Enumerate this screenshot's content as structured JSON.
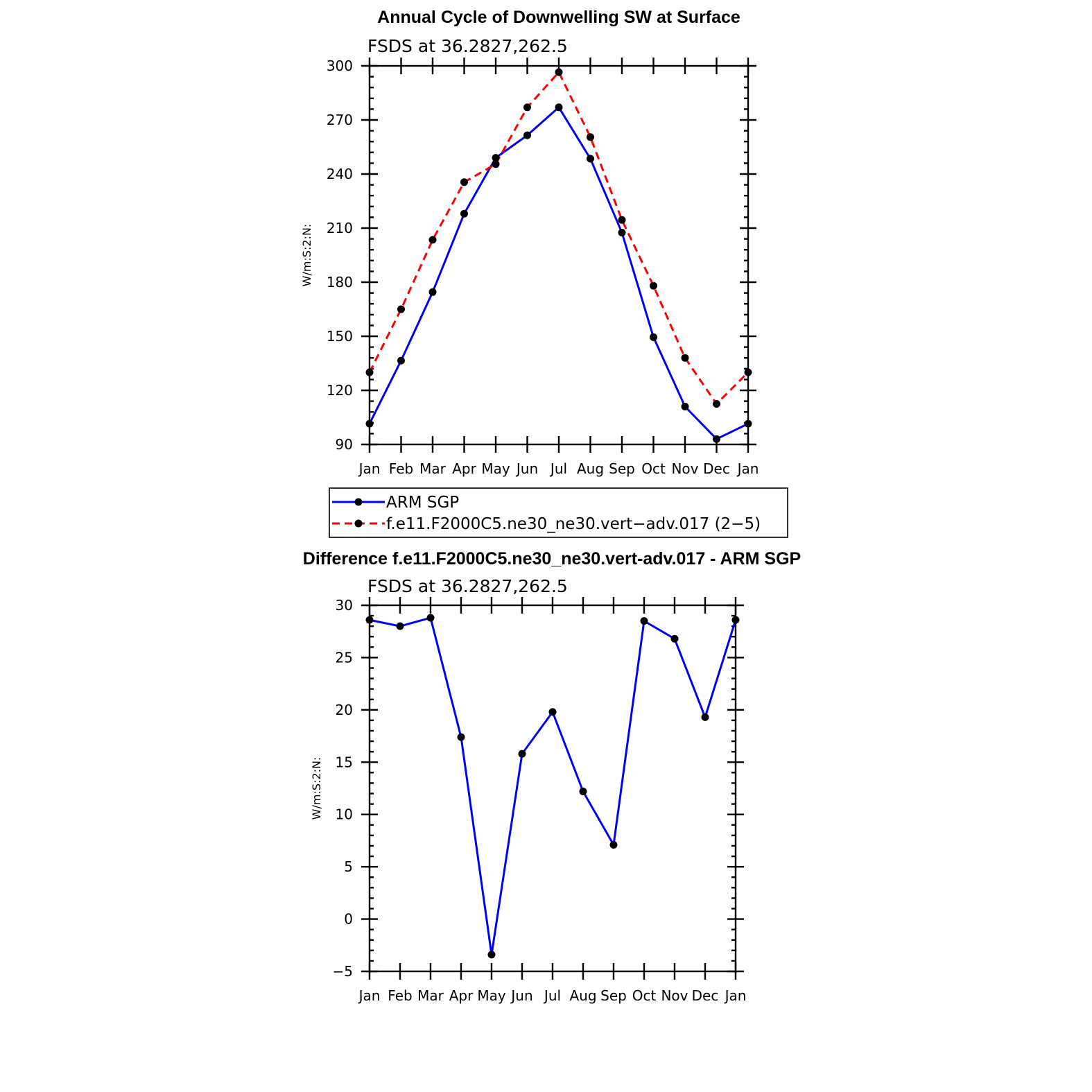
{
  "chart_data": [
    {
      "type": "line",
      "title": "Annual Cycle of Downwelling SW at Surface",
      "subtitle": "FSDS at 36.2827,262.5",
      "ylabel": "W/m:S:2:N:",
      "xlabel": "",
      "categories": [
        "Jan",
        "Feb",
        "Mar",
        "Apr",
        "May",
        "Jun",
        "Jul",
        "Aug",
        "Sep",
        "Oct",
        "Nov",
        "Dec",
        "Jan"
      ],
      "yticks": [
        90,
        120,
        150,
        180,
        210,
        240,
        270,
        300
      ],
      "ylim": [
        90,
        300
      ],
      "grid": false,
      "legend_position": "below",
      "series": [
        {
          "name": "ARM SGP",
          "color": "#0000ff",
          "dash": "solid",
          "values": [
            101.5,
            136.5,
            174.5,
            218,
            249,
            261.5,
            277,
            248.5,
            207.5,
            149.5,
            111,
            93,
            101.5
          ]
        },
        {
          "name": "f.e11.F2000C5.ne30_ne30.vert−adv.017 (2−5)",
          "color": "#ff0000",
          "dash": "dashed",
          "values": [
            130,
            165,
            203.5,
            235.5,
            245.5,
            277,
            296.5,
            260.5,
            214.5,
            178,
            138,
            112.5,
            130
          ]
        }
      ]
    },
    {
      "type": "line",
      "title": "Difference f.e11.F2000C5.ne30_ne30.vert-adv.017 - ARM SGP",
      "subtitle": "FSDS at 36.2827,262.5",
      "ylabel": "W/m:S:2:N:",
      "xlabel": "",
      "categories": [
        "Jan",
        "Feb",
        "Mar",
        "Apr",
        "May",
        "Jun",
        "Jul",
        "Aug",
        "Sep",
        "Oct",
        "Nov",
        "Dec",
        "Jan"
      ],
      "yticks": [
        -5,
        0,
        5,
        10,
        15,
        20,
        25,
        30
      ],
      "ytick_labels": [
        "−5",
        "0",
        "5",
        "10",
        "15",
        "20",
        "25",
        "30"
      ],
      "ylim": [
        -5,
        30
      ],
      "grid": false,
      "series": [
        {
          "color": "#0000ff",
          "dash": "solid",
          "values": [
            28.6,
            28,
            28.8,
            17.4,
            -3.4,
            15.8,
            19.8,
            12.2,
            7.1,
            28.5,
            26.8,
            19.3,
            28.6
          ]
        }
      ]
    }
  ]
}
